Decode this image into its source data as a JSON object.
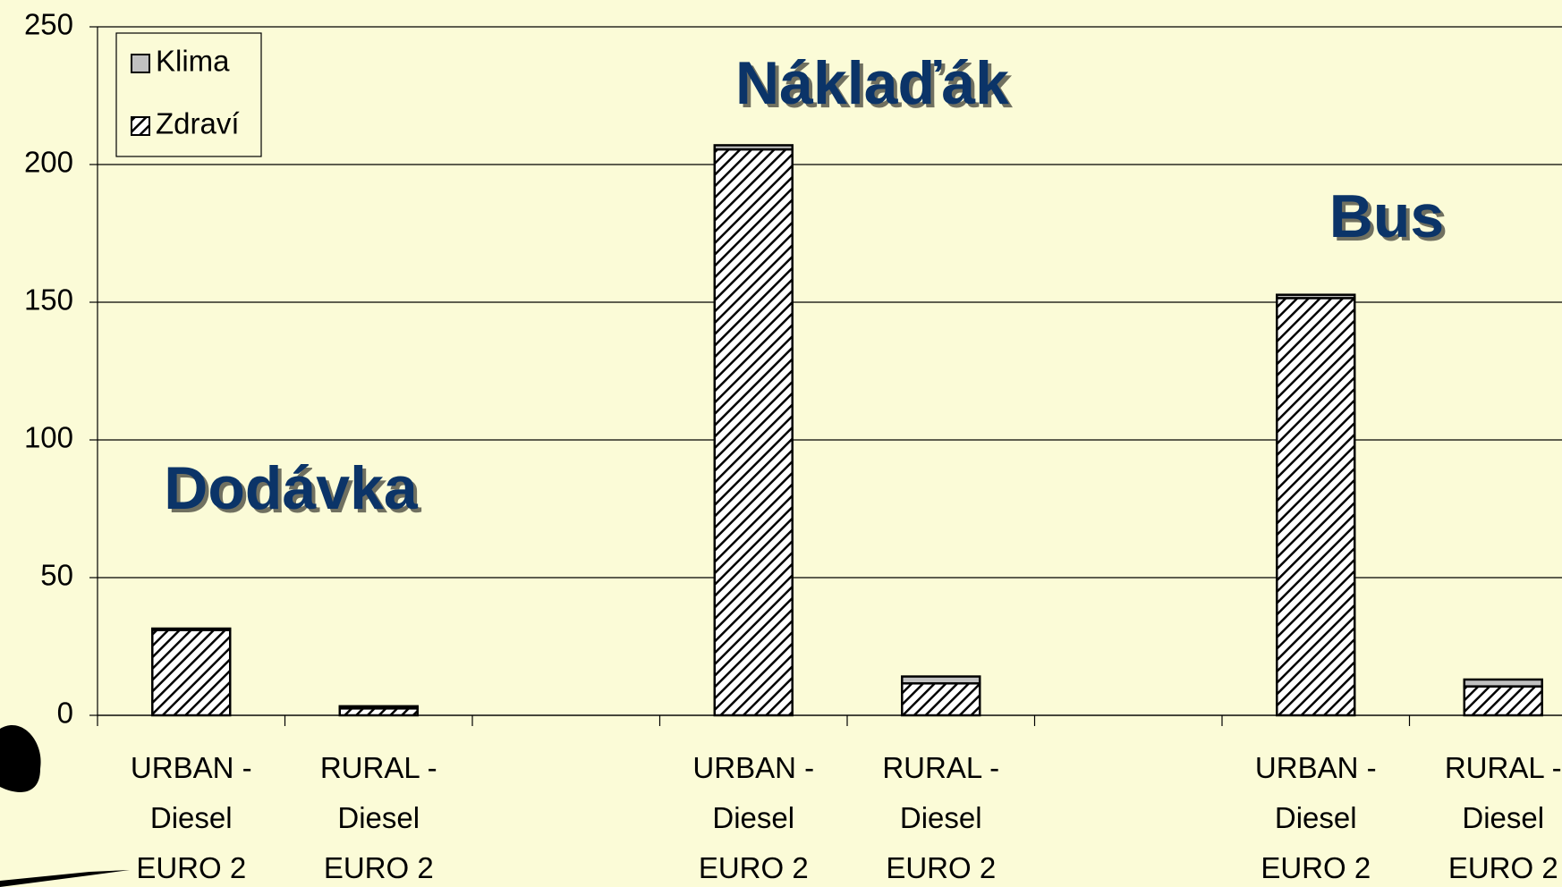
{
  "chart_data": {
    "type": "stacked_bar",
    "categories": [
      "URBAN -\nDiesel\nEURO 2",
      "RURAL -\nDiesel\nEURO 2",
      null,
      "URBAN -\nDiesel\nEURO 2",
      "RURAL -\nDiesel\nEURO 2",
      null,
      "URBAN -\nDiesel\nEURO 2",
      "RURAL -\nDiesel\nEURO 2"
    ],
    "series": [
      {
        "name": "Zdraví",
        "color": "#ffffff",
        "hatch": true,
        "values": [
          31,
          2.5,
          null,
          205.5,
          11.6,
          null,
          151.5,
          10.5
        ]
      },
      {
        "name": "Klima",
        "color": "#c0c0c0",
        "hatch": false,
        "values": [
          0.5,
          0.8,
          null,
          1.5,
          2.5,
          null,
          1.2,
          2.5
        ]
      }
    ],
    "ylim": [
      0,
      250
    ],
    "yticks": [
      0,
      50,
      100,
      150,
      200,
      250
    ],
    "grid": true,
    "legend": "top-left",
    "annotations": [
      "Dodávka",
      "Náklaďák",
      "Bus"
    ]
  }
}
